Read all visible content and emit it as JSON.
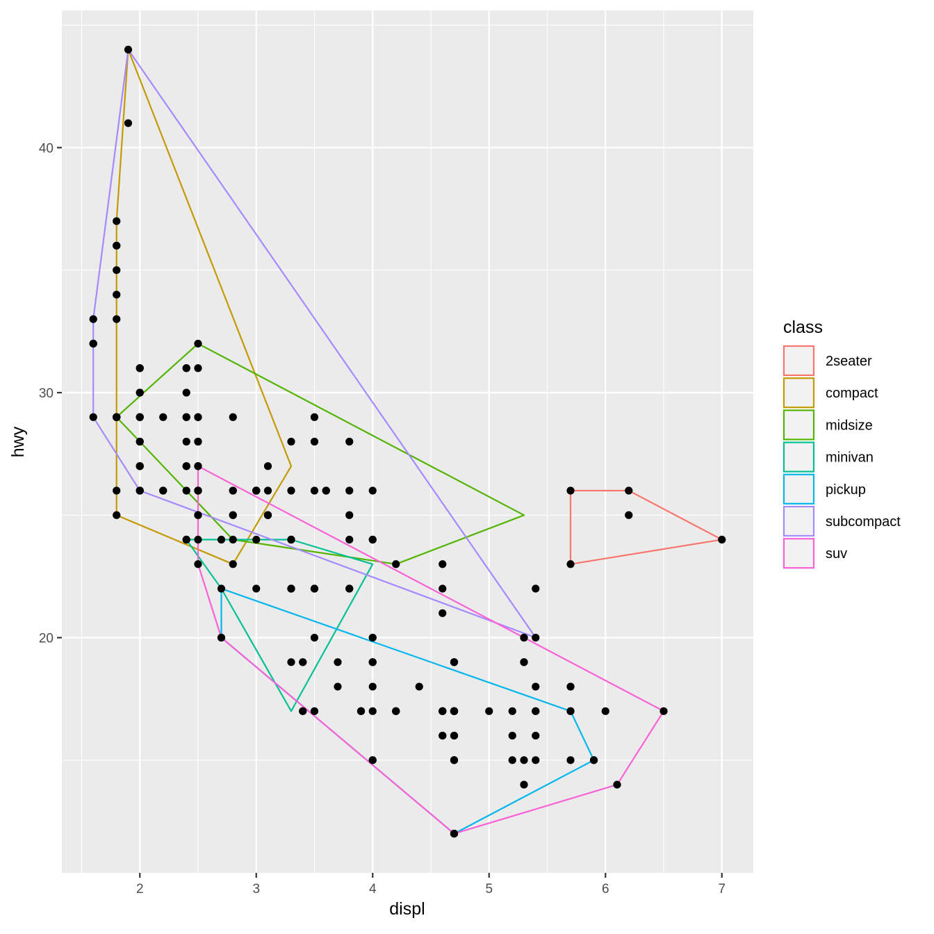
{
  "chart_data": {
    "type": "scatter",
    "title": "",
    "xlabel": "displ",
    "ylabel": "hwy",
    "xlim": [
      1.33,
      7.27
    ],
    "ylim": [
      10.4,
      45.6
    ],
    "x_ticks": [
      2,
      3,
      4,
      5,
      6,
      7
    ],
    "y_ticks": [
      20,
      30,
      40
    ],
    "grid": true,
    "legend": {
      "title": "class",
      "position": "right"
    },
    "points": [
      [
        1.8,
        29
      ],
      [
        1.8,
        29
      ],
      [
        2.0,
        31
      ],
      [
        2.0,
        30
      ],
      [
        2.8,
        26
      ],
      [
        2.8,
        26
      ],
      [
        3.1,
        27
      ],
      [
        1.8,
        26
      ],
      [
        1.8,
        25
      ],
      [
        2.0,
        28
      ],
      [
        2.0,
        27
      ],
      [
        2.8,
        25
      ],
      [
        2.8,
        25
      ],
      [
        3.1,
        25
      ],
      [
        3.1,
        25
      ],
      [
        2.8,
        24
      ],
      [
        3.1,
        25
      ],
      [
        4.2,
        23
      ],
      [
        5.3,
        20
      ],
      [
        5.3,
        15
      ],
      [
        5.3,
        20
      ],
      [
        5.7,
        17
      ],
      [
        6.0,
        17
      ],
      [
        5.7,
        26
      ],
      [
        5.7,
        23
      ],
      [
        6.2,
        26
      ],
      [
        6.2,
        25
      ],
      [
        7.0,
        24
      ],
      [
        5.3,
        19
      ],
      [
        5.3,
        14
      ],
      [
        5.7,
        15
      ],
      [
        6.5,
        17
      ],
      [
        2.4,
        27
      ],
      [
        2.4,
        30
      ],
      [
        3.1,
        26
      ],
      [
        3.5,
        29
      ],
      [
        3.6,
        26
      ],
      [
        2.4,
        24
      ],
      [
        3.0,
        24
      ],
      [
        3.3,
        22
      ],
      [
        3.3,
        22
      ],
      [
        3.3,
        24
      ],
      [
        3.3,
        24
      ],
      [
        3.3,
        24
      ],
      [
        3.8,
        22
      ],
      [
        3.8,
        22
      ],
      [
        3.8,
        24
      ],
      [
        4.0,
        24
      ],
      [
        3.7,
        19
      ],
      [
        3.7,
        18
      ],
      [
        3.9,
        17
      ],
      [
        3.9,
        17
      ],
      [
        4.7,
        19
      ],
      [
        4.7,
        19
      ],
      [
        4.7,
        12
      ],
      [
        5.2,
        17
      ],
      [
        5.2,
        15
      ],
      [
        3.9,
        17
      ],
      [
        4.7,
        17
      ],
      [
        4.7,
        12
      ],
      [
        4.7,
        17
      ],
      [
        5.2,
        16
      ],
      [
        5.7,
        18
      ],
      [
        5.9,
        15
      ],
      [
        4.7,
        16
      ],
      [
        4.7,
        12
      ],
      [
        4.7,
        17
      ],
      [
        4.7,
        17
      ],
      [
        4.7,
        16
      ],
      [
        5.7,
        18
      ],
      [
        6.1,
        14
      ],
      [
        4.0,
        20
      ],
      [
        4.2,
        17
      ],
      [
        4.4,
        18
      ],
      [
        4.6,
        16
      ],
      [
        5.4,
        17
      ],
      [
        5.4,
        15
      ],
      [
        5.4,
        18
      ],
      [
        4.0,
        19
      ],
      [
        4.0,
        19
      ],
      [
        4.6,
        17
      ],
      [
        5.0,
        17
      ],
      [
        4.2,
        17
      ],
      [
        4.2,
        17
      ],
      [
        4.6,
        16
      ],
      [
        4.6,
        17
      ],
      [
        4.6,
        17
      ],
      [
        5.4,
        17
      ],
      [
        5.4,
        16
      ],
      [
        3.8,
        26
      ],
      [
        3.8,
        25
      ],
      [
        4.0,
        26
      ],
      [
        4.0,
        24
      ],
      [
        4.6,
        21
      ],
      [
        5.4,
        22
      ],
      [
        1.8,
        29
      ],
      [
        1.8,
        29
      ],
      [
        2.0,
        28
      ],
      [
        2.0,
        29
      ],
      [
        1.6,
        33
      ],
      [
        1.6,
        32
      ],
      [
        1.6,
        32
      ],
      [
        1.6,
        29
      ],
      [
        1.6,
        32
      ],
      [
        1.8,
        34
      ],
      [
        1.8,
        36
      ],
      [
        1.8,
        36
      ],
      [
        2.0,
        29
      ],
      [
        2.0,
        26
      ],
      [
        2.0,
        27
      ],
      [
        2.0,
        30
      ],
      [
        2.0,
        31
      ],
      [
        2.0,
        26
      ],
      [
        2.4,
        26
      ],
      [
        2.4,
        28
      ],
      [
        2.5,
        26
      ],
      [
        2.5,
        29
      ],
      [
        2.5,
        28
      ],
      [
        2.5,
        27
      ],
      [
        2.4,
        24
      ],
      [
        2.4,
        24
      ],
      [
        3.3,
        22
      ],
      [
        3.3,
        19
      ],
      [
        3.5,
        20
      ],
      [
        3.5,
        17
      ],
      [
        3.3,
        26
      ],
      [
        2.4,
        29
      ],
      [
        2.4,
        29
      ],
      [
        2.5,
        26
      ],
      [
        2.5,
        26
      ],
      [
        2.5,
        29
      ],
      [
        3.5,
        26
      ],
      [
        4.0,
        19
      ],
      [
        4.7,
        19
      ],
      [
        5.3,
        19
      ],
      [
        4.7,
        17
      ],
      [
        4.7,
        17
      ],
      [
        3.0,
        26
      ],
      [
        3.0,
        26
      ],
      [
        3.0,
        26
      ],
      [
        3.0,
        26
      ],
      [
        3.4,
        17
      ],
      [
        3.4,
        19
      ],
      [
        4.0,
        17
      ],
      [
        4.7,
        17
      ],
      [
        4.7,
        15
      ],
      [
        4.7,
        17
      ],
      [
        5.7,
        17
      ],
      [
        2.5,
        25
      ],
      [
        2.5,
        24
      ],
      [
        2.5,
        27
      ],
      [
        2.5,
        25
      ],
      [
        2.2,
        26
      ],
      [
        2.2,
        26
      ],
      [
        2.5,
        26
      ],
      [
        1.8,
        35
      ],
      [
        1.8,
        37
      ],
      [
        4.0,
        15
      ],
      [
        4.0,
        15
      ],
      [
        2.7,
        20
      ],
      [
        2.7,
        20
      ],
      [
        2.7,
        22
      ],
      [
        3.4,
        17
      ],
      [
        3.4,
        19
      ],
      [
        4.0,
        18
      ],
      [
        4.0,
        20
      ],
      [
        4.7,
        15
      ],
      [
        4.7,
        17
      ],
      [
        2.4,
        31
      ],
      [
        2.4,
        31
      ],
      [
        3.0,
        26
      ],
      [
        3.0,
        26
      ],
      [
        3.5,
        22
      ],
      [
        3.5,
        22
      ],
      [
        1.9,
        44
      ],
      [
        1.9,
        41
      ],
      [
        2.0,
        29
      ],
      [
        2.0,
        26
      ],
      [
        2.5,
        28
      ],
      [
        2.8,
        29
      ],
      [
        1.8,
        29
      ],
      [
        1.8,
        33
      ],
      [
        2.5,
        23
      ],
      [
        2.7,
        24
      ],
      [
        2.8,
        23
      ],
      [
        3.0,
        22
      ],
      [
        3.6,
        26
      ],
      [
        4.6,
        23
      ],
      [
        4.6,
        22
      ],
      [
        5.4,
        20
      ],
      [
        5.9,
        15
      ],
      [
        4.7,
        15
      ],
      [
        4.0,
        19
      ],
      [
        3.8,
        28
      ],
      [
        3.5,
        28
      ],
      [
        3.3,
        28
      ],
      [
        2.4,
        27
      ],
      [
        2.5,
        31
      ],
      [
        2.0,
        27
      ],
      [
        2.2,
        29
      ],
      [
        2.5,
        32
      ],
      [
        4.6,
        17
      ]
    ],
    "series": [
      {
        "name": "2seater",
        "color": "#F8766D",
        "hull": [
          [
            5.7,
            26
          ],
          [
            6.2,
            26
          ],
          [
            7.0,
            24
          ],
          [
            5.7,
            23
          ]
        ]
      },
      {
        "name": "compact",
        "color": "#C49A00",
        "hull": [
          [
            1.8,
            37
          ],
          [
            1.9,
            44
          ],
          [
            3.3,
            27
          ],
          [
            2.8,
            23
          ],
          [
            1.8,
            25
          ]
        ]
      },
      {
        "name": "midsize",
        "color": "#53B400",
        "hull": [
          [
            2.5,
            32
          ],
          [
            5.3,
            25
          ],
          [
            4.2,
            23
          ],
          [
            2.8,
            24
          ],
          [
            1.8,
            29
          ]
        ]
      },
      {
        "name": "minivan",
        "color": "#00C094",
        "hull": [
          [
            2.4,
            24
          ],
          [
            3.3,
            24
          ],
          [
            4.0,
            23
          ],
          [
            3.3,
            17
          ],
          [
            2.7,
            22
          ]
        ]
      },
      {
        "name": "pickup",
        "color": "#00B6EB",
        "hull": [
          [
            2.7,
            22
          ],
          [
            5.7,
            17
          ],
          [
            5.9,
            15
          ],
          [
            4.7,
            12
          ],
          [
            2.7,
            20
          ]
        ]
      },
      {
        "name": "subcompact",
        "color": "#A58AFF",
        "hull": [
          [
            1.9,
            44
          ],
          [
            5.4,
            20
          ],
          [
            2.0,
            26
          ],
          [
            1.6,
            29
          ],
          [
            1.6,
            33
          ]
        ]
      },
      {
        "name": "suv",
        "color": "#FB61D7",
        "hull": [
          [
            2.5,
            27
          ],
          [
            6.5,
            17
          ],
          [
            6.1,
            14
          ],
          [
            4.7,
            12
          ],
          [
            2.7,
            20
          ],
          [
            2.5,
            23
          ]
        ]
      }
    ],
    "colors": {
      "panel": "#EBEBEB",
      "grid": "#FFFFFF",
      "point": "#000000"
    }
  }
}
